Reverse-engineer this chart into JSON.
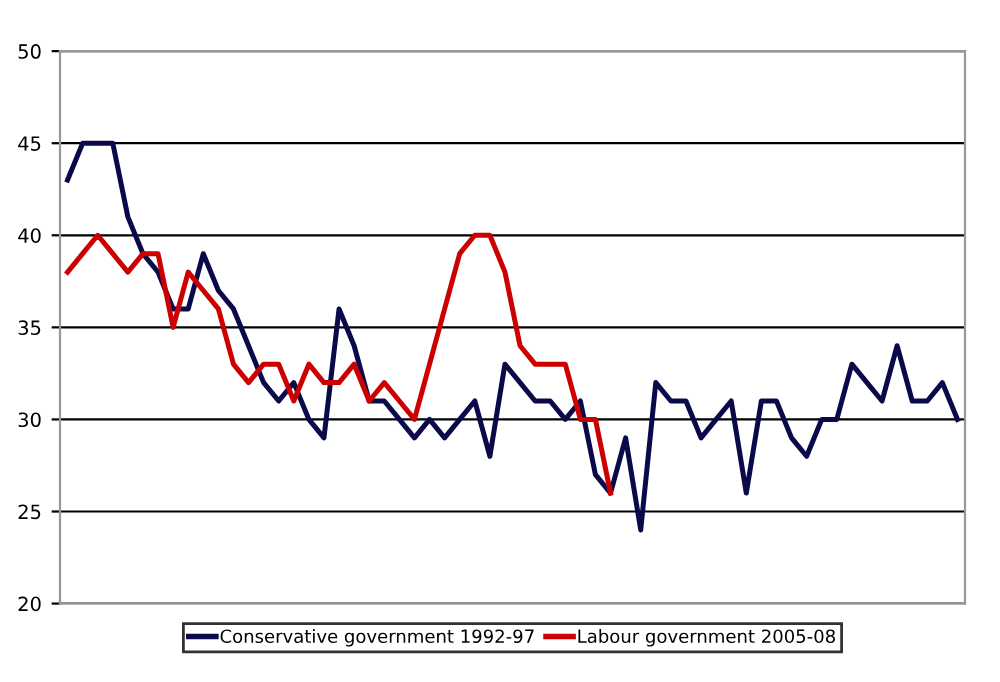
{
  "chart_data": {
    "type": "line",
    "categories": [
      null,
      null,
      null,
      null,
      null,
      null,
      null,
      null,
      null,
      null,
      null,
      null,
      null,
      null,
      null,
      null,
      null,
      null,
      null,
      null,
      null,
      null,
      null,
      null,
      null,
      null,
      null,
      null,
      null,
      null,
      null,
      null,
      null,
      null,
      null,
      null,
      null,
      null,
      null,
      null,
      null,
      null,
      null,
      null,
      null,
      null,
      null,
      null,
      null,
      null,
      null,
      null,
      null,
      null,
      null,
      null,
      null,
      null,
      null,
      null
    ],
    "series": [
      {
        "name": "Conservative government 1992-97",
        "color": "#0a0a4a",
        "values": [
          43,
          45,
          45,
          45,
          41,
          39,
          38,
          36,
          36,
          39,
          37,
          36,
          34,
          32,
          31,
          32,
          30,
          29,
          36,
          34,
          31,
          31,
          30,
          29,
          30,
          29,
          30,
          31,
          28,
          33,
          32,
          31,
          31,
          30,
          31,
          27,
          26,
          29,
          24,
          32,
          31,
          31,
          29,
          30,
          31,
          26,
          31,
          31,
          29,
          28,
          30,
          30,
          33,
          32,
          31,
          34,
          31,
          31,
          32,
          30
        ]
      },
      {
        "name": "Labour government 2005-08",
        "color": "#cc0000",
        "values": [
          38,
          39,
          40,
          39,
          38,
          39,
          39,
          35,
          38,
          37,
          36,
          33,
          32,
          33,
          33,
          31,
          33,
          32,
          32,
          33,
          31,
          32,
          31,
          30,
          33,
          36,
          39,
          40,
          40,
          38,
          34,
          33,
          33,
          33,
          30,
          30,
          26,
          null,
          null,
          null,
          null,
          null,
          null,
          null,
          null,
          null,
          null,
          null,
          null,
          null,
          null,
          null,
          null,
          null,
          null,
          null,
          null,
          null,
          null,
          null
        ]
      }
    ],
    "ylim": [
      20,
      50
    ],
    "yticks": [
      20,
      25,
      30,
      35,
      40,
      45,
      50
    ],
    "grid": "y",
    "legend": "bottom",
    "marker": "none",
    "line_style": "solid"
  }
}
